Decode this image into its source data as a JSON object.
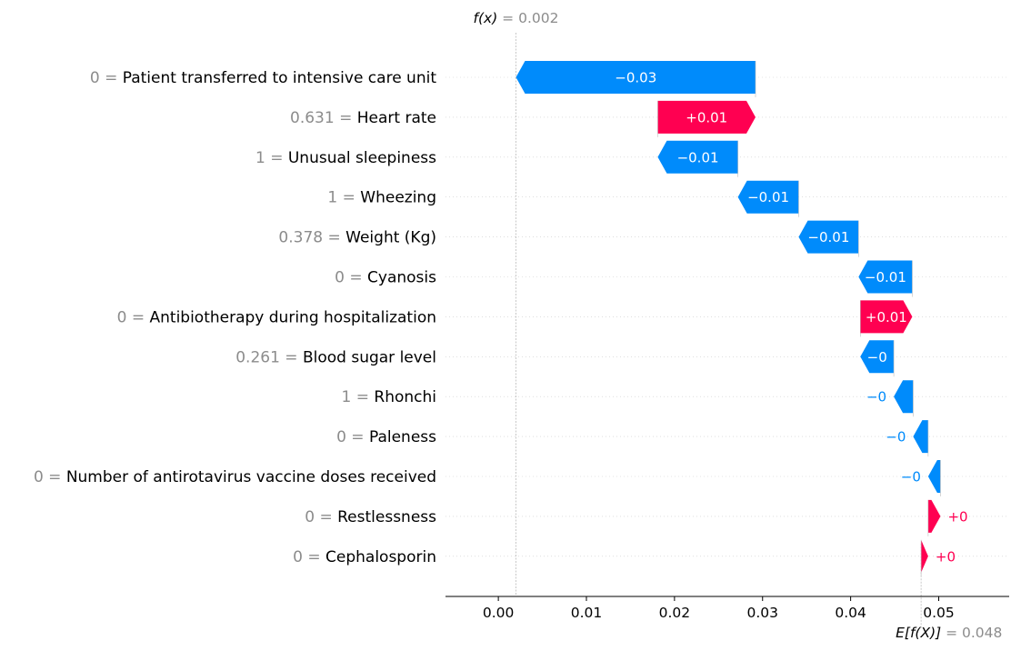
{
  "chart_data": {
    "type": "waterfall",
    "fx": {
      "label": "f(x)",
      "value_text": "= 0.002",
      "value": 0.002
    },
    "expected": {
      "label": "E[f(X)]",
      "value_text": "= 0.048",
      "value": 0.048
    },
    "xlim": [
      -0.006,
      0.058
    ],
    "xticks": [
      0.0,
      0.01,
      0.02,
      0.03,
      0.04,
      0.05
    ],
    "xtick_labels": [
      "0.00",
      "0.01",
      "0.02",
      "0.03",
      "0.04",
      "0.05"
    ],
    "colors": {
      "positive": "#ff0051",
      "negative": "#008bfb",
      "value_label": "#8c8c8c"
    },
    "features": [
      {
        "value": "0",
        "name": "Patient transferred to intensive care unit",
        "start": 0.0292,
        "end": 0.002,
        "label": "−0.03"
      },
      {
        "value": "0.631",
        "name": "Heart rate",
        "start": 0.0181,
        "end": 0.0292,
        "label": "+0.01"
      },
      {
        "value": "1",
        "name": "Unusual sleepiness",
        "start": 0.0272,
        "end": 0.0181,
        "label": "−0.01"
      },
      {
        "value": "1",
        "name": "Wheezing",
        "start": 0.0341,
        "end": 0.0272,
        "label": "−0.01"
      },
      {
        "value": "0.378",
        "name": "Weight (Kg)",
        "start": 0.0409,
        "end": 0.0341,
        "label": "−0.01"
      },
      {
        "value": "0",
        "name": "Cyanosis",
        "start": 0.047,
        "end": 0.0409,
        "label": "−0.01"
      },
      {
        "value": "0",
        "name": "Antibiotherapy during hospitalization",
        "start": 0.0411,
        "end": 0.047,
        "label": "+0.01"
      },
      {
        "value": "0.261",
        "name": "Blood sugar level",
        "start": 0.0449,
        "end": 0.0411,
        "label": "−0"
      },
      {
        "value": "1",
        "name": "Rhonchi",
        "start": 0.0471,
        "end": 0.0449,
        "label": "−0"
      },
      {
        "value": "0",
        "name": "Paleness",
        "start": 0.0488,
        "end": 0.0471,
        "label": "−0"
      },
      {
        "value": "0",
        "name": "Number of antirotavirus vaccine doses received",
        "start": 0.0502,
        "end": 0.0488,
        "label": "−0"
      },
      {
        "value": "0",
        "name": "Restlessness",
        "start": 0.0488,
        "end": 0.0502,
        "label": "+0"
      },
      {
        "value": "0",
        "name": "Cephalosporin",
        "start": 0.048,
        "end": 0.0488,
        "label": "+0"
      }
    ]
  }
}
